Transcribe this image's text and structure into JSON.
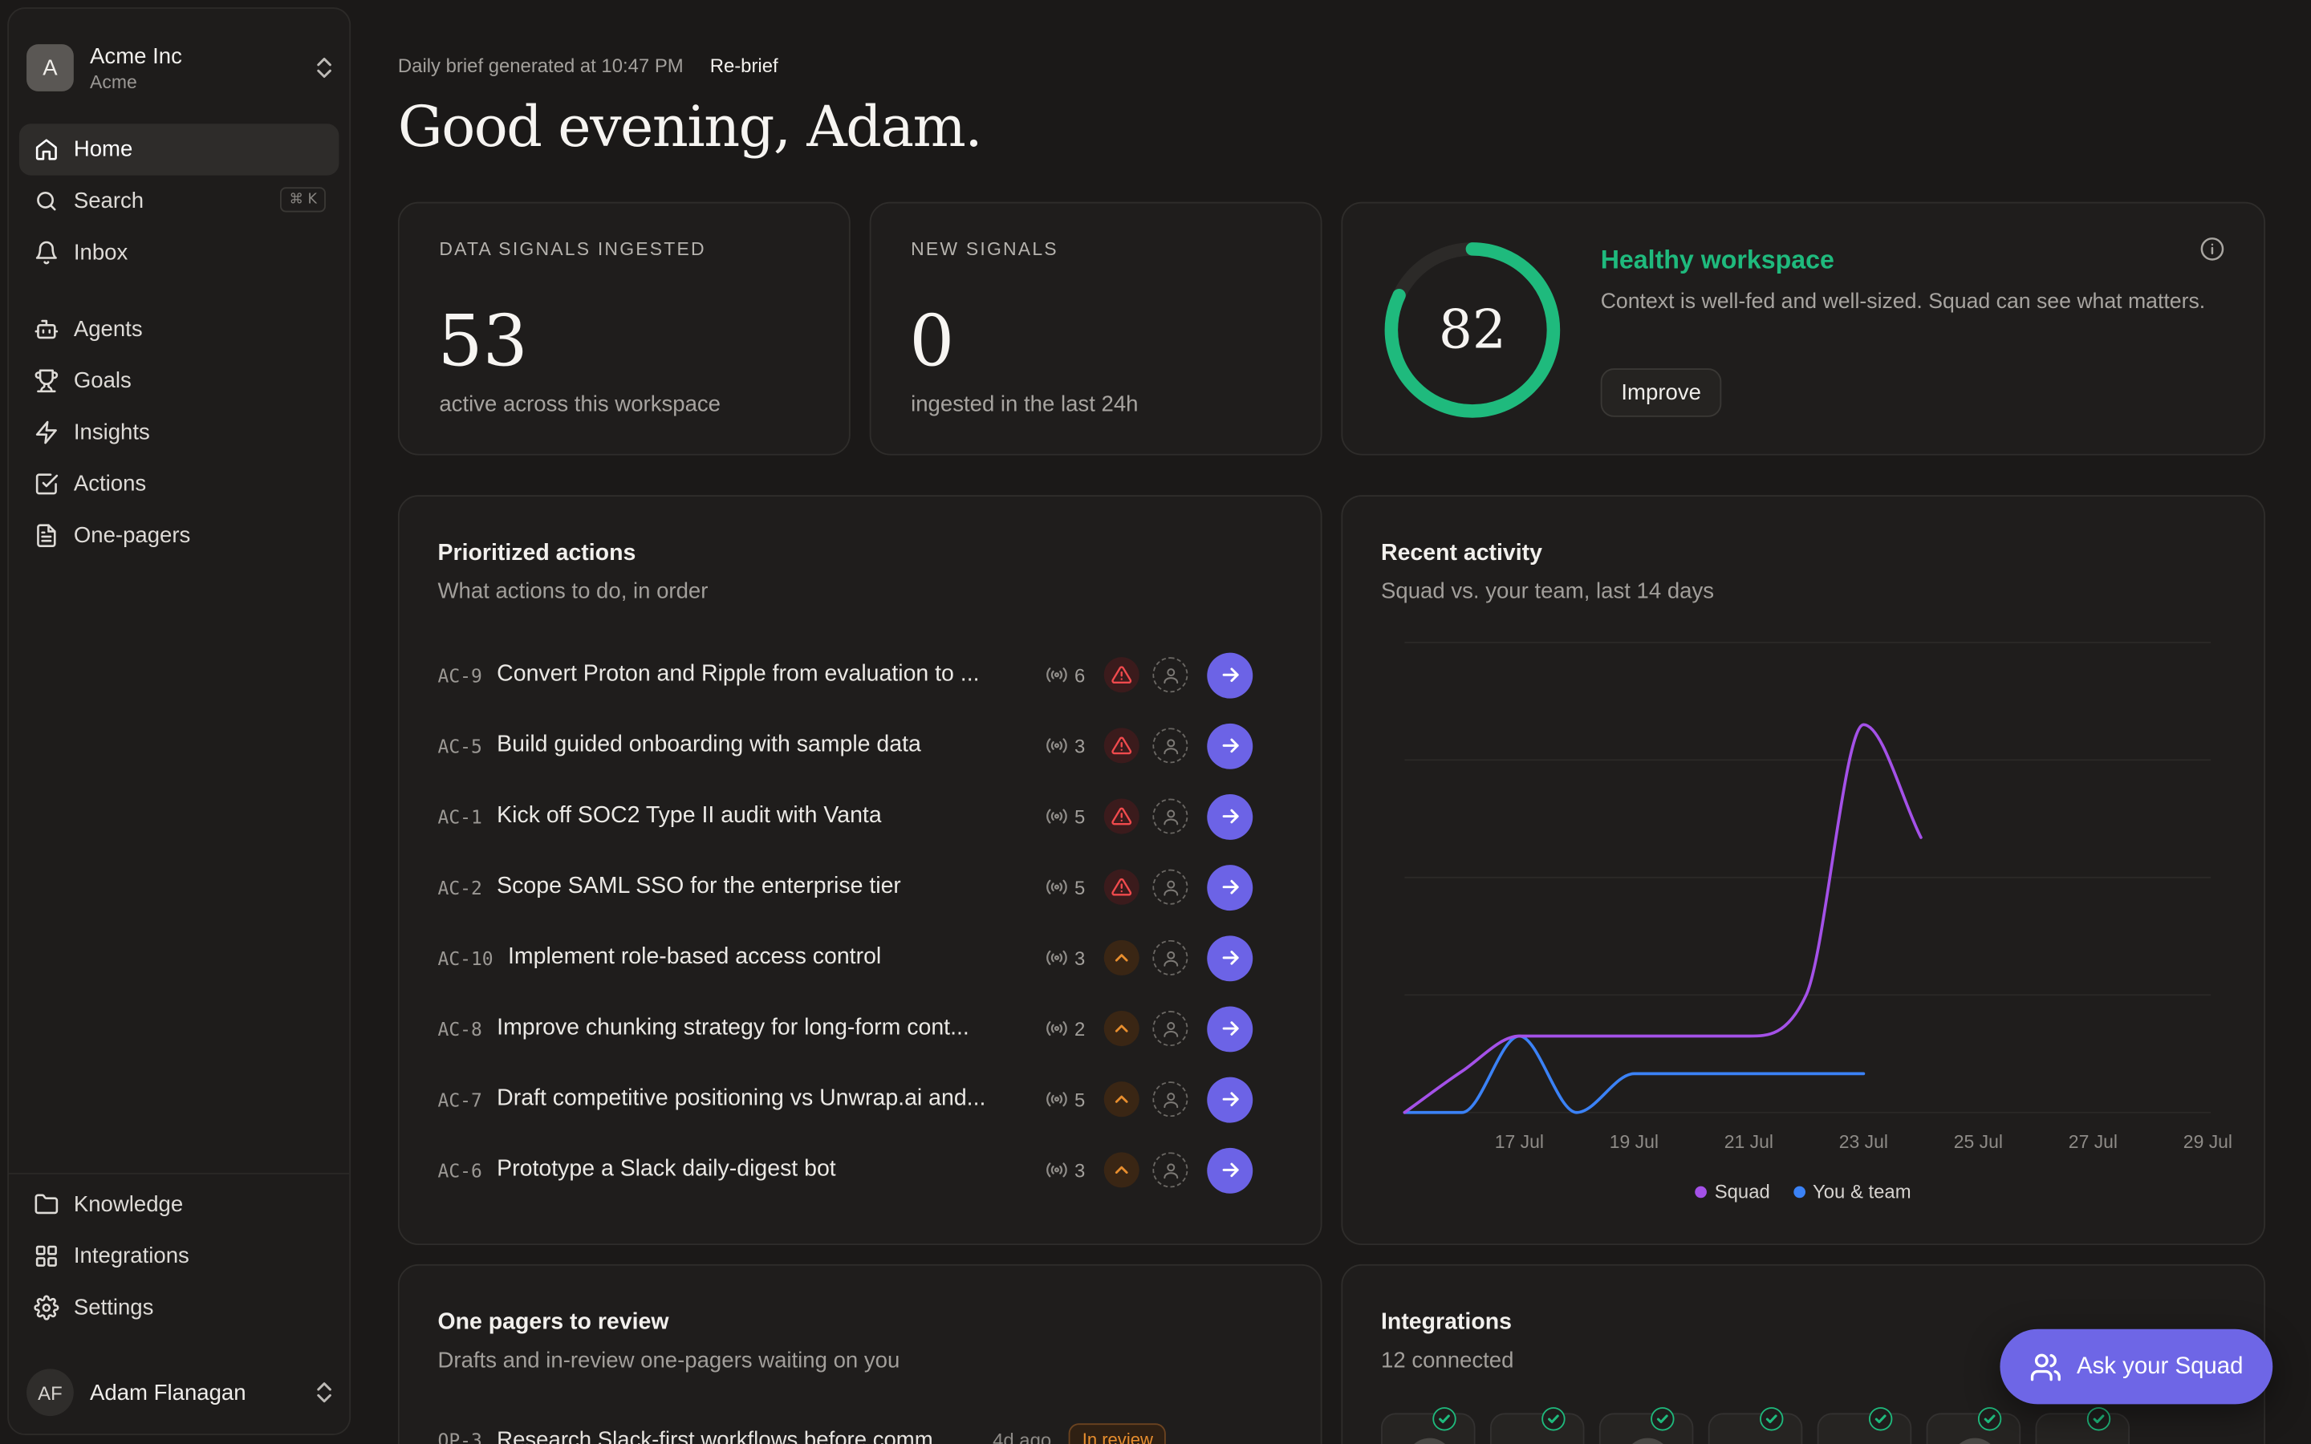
{
  "workspace": {
    "initial": "A",
    "name": "Acme Inc",
    "sub": "Acme"
  },
  "nav": {
    "home": "Home",
    "search": "Search",
    "search_shortcut": "⌘ K",
    "inbox": "Inbox",
    "agents": "Agents",
    "goals": "Goals",
    "insights": "Insights",
    "actions": "Actions",
    "one_pagers": "One-pagers",
    "knowledge": "Knowledge",
    "integrations": "Integrations",
    "settings": "Settings"
  },
  "user": {
    "initials": "AF",
    "name": "Adam Flanagan"
  },
  "brief": {
    "generated": "Daily brief generated at 10:47 PM",
    "rebrief": "Re-brief"
  },
  "greeting": "Good evening, Adam.",
  "stats": {
    "ingested": {
      "label": "DATA SIGNALS INGESTED",
      "value": "53",
      "sub": "active across this workspace"
    },
    "new": {
      "label": "NEW SIGNALS",
      "value": "0",
      "sub": "ingested in the last 24h"
    }
  },
  "health": {
    "score": 82,
    "score_label": "82",
    "title": "Healthy workspace",
    "description": "Context is well-fed and well-sized. Squad can see what matters.",
    "button": "Improve",
    "color": "#1fba7d"
  },
  "actions": {
    "title": "Prioritized actions",
    "subtitle": "What actions to do, in order",
    "items": [
      {
        "id": "AC-9",
        "title": "Convert Proton and Ripple from evaluation to ...",
        "signals": "6",
        "priority": "urgent"
      },
      {
        "id": "AC-5",
        "title": "Build guided onboarding with sample data",
        "signals": "3",
        "priority": "urgent"
      },
      {
        "id": "AC-1",
        "title": "Kick off SOC2 Type II audit with Vanta",
        "signals": "5",
        "priority": "urgent"
      },
      {
        "id": "AC-2",
        "title": "Scope SAML SSO for the enterprise tier",
        "signals": "5",
        "priority": "urgent"
      },
      {
        "id": "AC-10",
        "title": "Implement role-based access control",
        "signals": "3",
        "priority": "high"
      },
      {
        "id": "AC-8",
        "title": "Improve chunking strategy for long-form cont...",
        "signals": "2",
        "priority": "high"
      },
      {
        "id": "AC-7",
        "title": "Draft competitive positioning vs Unwrap.ai and...",
        "signals": "5",
        "priority": "high"
      },
      {
        "id": "AC-6",
        "title": "Prototype a Slack daily-digest bot",
        "signals": "3",
        "priority": "high"
      }
    ]
  },
  "activity": {
    "title": "Recent activity",
    "subtitle": "Squad vs. your team, last 14 days"
  },
  "chart_data": {
    "type": "line",
    "x_ticks": [
      "17 Jul",
      "19 Jul",
      "21 Jul",
      "23 Jul",
      "25 Jul",
      "27 Jul",
      "29 Jul"
    ],
    "x_range": [
      "15 Jul",
      "29 Jul"
    ],
    "y_range": [
      0,
      4
    ],
    "grid": true,
    "legend": "bottom",
    "series": [
      {
        "name": "Squad",
        "color": "#a451e8",
        "points": [
          [
            "15 Jul",
            0
          ],
          [
            "16 Jul",
            0.35
          ],
          [
            "17 Jul",
            0.65
          ],
          [
            "18 Jul",
            0.65
          ],
          [
            "19 Jul",
            0.65
          ],
          [
            "20 Jul",
            0.65
          ],
          [
            "21 Jul",
            0.65
          ],
          [
            "22 Jul",
            1.0
          ],
          [
            "23 Jul",
            3.3
          ],
          [
            "24 Jul",
            2.34
          ]
        ]
      },
      {
        "name": "You & team",
        "color": "#3b82f6",
        "points": [
          [
            "15 Jul",
            0
          ],
          [
            "16 Jul",
            0
          ],
          [
            "17 Jul",
            0.65
          ],
          [
            "18 Jul",
            0
          ],
          [
            "19 Jul",
            0.33
          ],
          [
            "20 Jul",
            0.33
          ],
          [
            "21 Jul",
            0.33
          ],
          [
            "22 Jul",
            0.33
          ],
          [
            "23 Jul",
            0.33
          ]
        ]
      }
    ]
  },
  "one_pagers": {
    "title": "One pagers to review",
    "subtitle": "Drafts and in-review one-pagers waiting on you",
    "item": {
      "id": "OP-3",
      "title": "Research Slack-first workflows before comm...",
      "age": "4d ago",
      "status": "In review"
    }
  },
  "integrations": {
    "title": "Integrations",
    "subtitle": "12 connected"
  },
  "ask": {
    "label": "Ask your Squad"
  }
}
